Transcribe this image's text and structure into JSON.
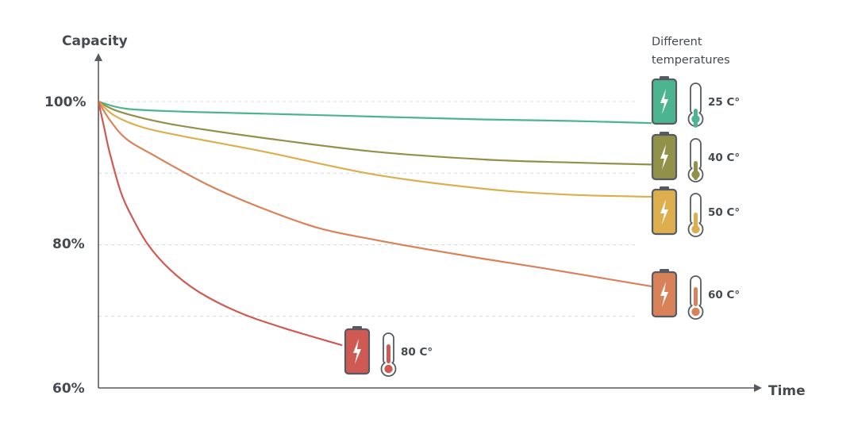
{
  "chart_data": {
    "type": "line",
    "ylabel": "Capacity",
    "xlabel": "Time",
    "y_ticks": [
      "100%",
      "80%",
      "60%"
    ],
    "ylim": [
      60,
      100
    ],
    "legend_title_lines": [
      "Different",
      "temperatures"
    ],
    "series": [
      {
        "name": "25 C°",
        "color": "#4cb58f",
        "icon": "battery-icon",
        "x": [
          0,
          0.05,
          0.15,
          0.3,
          0.5,
          0.7,
          0.85,
          1.0
        ],
        "y": [
          100,
          99.0,
          98.6,
          98.3,
          97.9,
          97.5,
          97.3,
          97.0
        ]
      },
      {
        "name": "40 C°",
        "color": "#919149",
        "icon": "battery-icon",
        "x": [
          0,
          0.03,
          0.08,
          0.15,
          0.3,
          0.5,
          0.7,
          0.85,
          1.0
        ],
        "y": [
          100,
          98.8,
          97.7,
          96.6,
          94.9,
          93.0,
          91.9,
          91.5,
          91.2
        ]
      },
      {
        "name": "50 C°",
        "color": "#dcae4e",
        "icon": "battery-icon",
        "x": [
          0,
          0.03,
          0.08,
          0.15,
          0.3,
          0.5,
          0.7,
          0.85,
          1.0
        ],
        "y": [
          100,
          98.0,
          96.4,
          95.2,
          93.0,
          89.8,
          87.8,
          87.0,
          86.7
        ]
      },
      {
        "name": "60 C°",
        "color": "#d9825a",
        "icon": "battery-icon",
        "x": [
          0,
          0.02,
          0.05,
          0.1,
          0.2,
          0.3,
          0.4,
          0.5,
          0.6,
          0.7,
          0.8,
          0.9,
          1.0
        ],
        "y": [
          100,
          97.5,
          94.8,
          92.5,
          88.3,
          85.0,
          82.3,
          80.7,
          79.3,
          78.0,
          76.8,
          75.5,
          74.2
        ]
      },
      {
        "name": "80 C°",
        "color": "#cf5a54",
        "icon": "battery-icon",
        "x": [
          0,
          0.01,
          0.02,
          0.04,
          0.06,
          0.09,
          0.13,
          0.18,
          0.25,
          0.33,
          0.44
        ],
        "y": [
          100,
          96.5,
          93.0,
          87.5,
          84.0,
          80.0,
          76.5,
          73.5,
          70.7,
          68.5,
          66.0
        ]
      }
    ]
  }
}
